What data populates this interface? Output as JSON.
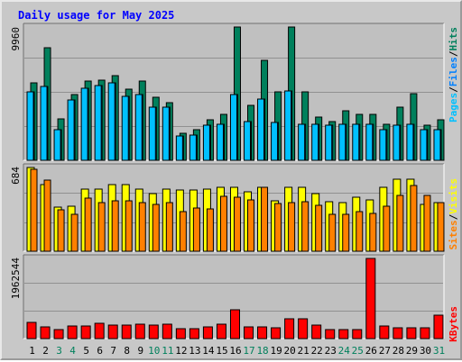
{
  "title": "Daily usage for May 2025",
  "colors": {
    "hits": "#00805c",
    "files": "#0080ff",
    "pages": "#00c0ff",
    "visits": "#ffff00",
    "sites": "#ff8000",
    "kbytes": "#ff0000",
    "weekend_day": "#00805c",
    "weekday": "#000000",
    "panel_bg": "#c0c0c0"
  },
  "chart_data": [
    {
      "type": "bar",
      "name": "hits-files-pages",
      "categories": [
        "1",
        "2",
        "3",
        "4",
        "5",
        "6",
        "7",
        "8",
        "9",
        "10",
        "11",
        "12",
        "13",
        "14",
        "15",
        "16",
        "17",
        "18",
        "19",
        "20",
        "21",
        "22",
        "23",
        "24",
        "25",
        "26",
        "27",
        "28",
        "29",
        "30",
        "31"
      ],
      "ymax_label": "9960",
      "ylim": [
        0,
        9960
      ],
      "legend": [
        "Pages",
        "/",
        "Files",
        "/",
        "Hits"
      ],
      "series": [
        {
          "name": "Hits",
          "values": [
            5800,
            8400,
            3100,
            4900,
            5900,
            6000,
            6300,
            5300,
            5900,
            4700,
            4300,
            2000,
            2300,
            3000,
            3400,
            9960,
            4100,
            7500,
            5100,
            9960,
            5100,
            3200,
            2900,
            3700,
            3400,
            3400,
            2700,
            4000,
            5000,
            2600,
            3000
          ]
        },
        {
          "name": "Files",
          "values": [
            5100,
            5500,
            2300,
            4500,
            5400,
            5600,
            5800,
            4800,
            4900,
            4000,
            4000,
            1800,
            1900,
            2600,
            2700,
            4900,
            2900,
            4600,
            2800,
            5200,
            2700,
            2700,
            2600,
            2700,
            2700,
            2700,
            2300,
            2600,
            2700,
            2300,
            2300
          ]
        },
        {
          "name": "Pages",
          "values": [
            5100,
            5500,
            2300,
            4500,
            5400,
            5600,
            5800,
            4800,
            4900,
            4000,
            4000,
            1800,
            1900,
            2600,
            2700,
            4900,
            2900,
            4600,
            2800,
            5200,
            2700,
            2700,
            2600,
            2700,
            2700,
            2700,
            2300,
            2600,
            2700,
            2300,
            2300
          ]
        }
      ]
    },
    {
      "type": "bar",
      "name": "visits-sites",
      "categories": [
        "1",
        "2",
        "3",
        "4",
        "5",
        "6",
        "7",
        "8",
        "9",
        "10",
        "11",
        "12",
        "13",
        "14",
        "15",
        "16",
        "17",
        "18",
        "19",
        "20",
        "21",
        "22",
        "23",
        "24",
        "25",
        "26",
        "27",
        "28",
        "29",
        "30",
        "31"
      ],
      "ymax_label": "684",
      "ylim": [
        0,
        684
      ],
      "legend": [
        "Sites",
        "/",
        "Visits"
      ],
      "series": [
        {
          "name": "Visits",
          "values": [
            684,
            545,
            360,
            370,
            510,
            510,
            545,
            545,
            505,
            470,
            510,
            500,
            500,
            505,
            520,
            520,
            485,
            520,
            415,
            520,
            520,
            470,
            405,
            395,
            440,
            420,
            520,
            585,
            590,
            380,
            395
          ]
        },
        {
          "name": "Sites",
          "values": [
            672,
            580,
            335,
            300,
            435,
            395,
            415,
            410,
            395,
            385,
            395,
            325,
            355,
            345,
            450,
            440,
            420,
            520,
            390,
            400,
            405,
            375,
            300,
            300,
            325,
            310,
            370,
            455,
            540,
            455,
            400
          ]
        }
      ]
    },
    {
      "type": "bar",
      "name": "kbytes",
      "categories": [
        "1",
        "2",
        "3",
        "4",
        "5",
        "6",
        "7",
        "8",
        "9",
        "10",
        "11",
        "12",
        "13",
        "14",
        "15",
        "16",
        "17",
        "18",
        "19",
        "20",
        "21",
        "22",
        "23",
        "24",
        "25",
        "26",
        "27",
        "28",
        "29",
        "30",
        "31"
      ],
      "ymax_label": "1962544",
      "ylim": [
        0,
        1962544
      ],
      "legend": [
        "KBytes"
      ],
      "series": [
        {
          "name": "KBytes",
          "values": [
            395000,
            295000,
            225000,
            300000,
            300000,
            380000,
            330000,
            330000,
            345000,
            320000,
            350000,
            250000,
            235000,
            280000,
            355000,
            700000,
            295000,
            295000,
            260000,
            480000,
            485000,
            325000,
            225000,
            220000,
            220000,
            1962544,
            300000,
            265000,
            270000,
            255000,
            570000
          ]
        }
      ]
    }
  ],
  "weekend_days": [
    3,
    4,
    10,
    11,
    17,
    18,
    24,
    25,
    31
  ]
}
